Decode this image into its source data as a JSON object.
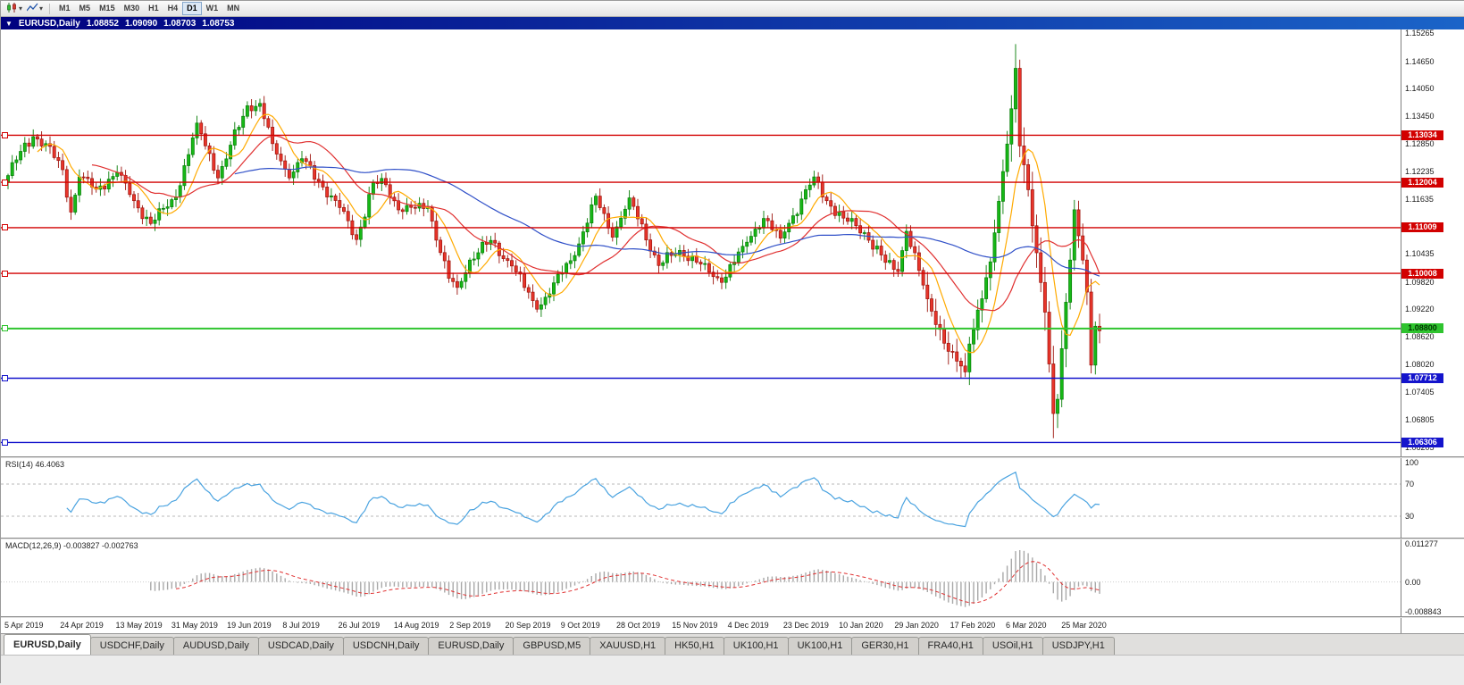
{
  "toolbar": {
    "dropdown_glyph": "▾",
    "timeframes": [
      "M1",
      "M5",
      "M15",
      "M30",
      "H1",
      "H4",
      "D1",
      "W1",
      "MN"
    ],
    "active_timeframe": "D1"
  },
  "title_bar": {
    "collapse_arrow": "▼",
    "symbol_title": "EURUSD,Daily",
    "open": "1.08852",
    "high": "1.09090",
    "low": "1.08703",
    "close": "1.08753"
  },
  "price_axis": {
    "labels": [
      "1.15265",
      "1.14650",
      "1.14050",
      "1.13450",
      "1.12850",
      "1.12235",
      "1.11635",
      "1.11035",
      "1.10435",
      "1.09820",
      "1.09220",
      "1.08620",
      "1.08020",
      "1.07405",
      "1.06805",
      "1.06205"
    ]
  },
  "hlines": [
    {
      "price": 1.13034,
      "label": "1.13034",
      "color": "#d20000",
      "text": "#ffffff"
    },
    {
      "price": 1.12004,
      "label": "1.12004",
      "color": "#d20000",
      "text": "#ffffff"
    },
    {
      "price": 1.11009,
      "label": "1.11009",
      "color": "#d20000",
      "text": "#ffffff"
    },
    {
      "price": 1.10008,
      "label": "1.10008",
      "color": "#d20000",
      "text": "#ffffff"
    },
    {
      "price": 1.088,
      "label": "1.08800",
      "color": "#2fc42f",
      "text": "#003300"
    },
    {
      "price": 1.07712,
      "label": "1.07712",
      "color": "#1414cc",
      "text": "#ffffff"
    },
    {
      "price": 1.06306,
      "label": "1.06306",
      "color": "#1414cc",
      "text": "#ffffff"
    }
  ],
  "date_axis": {
    "labels": [
      "5 Apr 2019",
      "24 Apr 2019",
      "13 May 2019",
      "31 May 2019",
      "19 Jun 2019",
      "8 Jul 2019",
      "26 Jul 2019",
      "14 Aug 2019",
      "2 Sep 2019",
      "20 Sep 2019",
      "9 Oct 2019",
      "28 Oct 2019",
      "15 Nov 2019",
      "4 Dec 2019",
      "23 Dec 2019",
      "10 Jan 2020",
      "29 Jan 2020",
      "17 Feb 2020",
      "6 Mar 2020",
      "25 Mar 2020"
    ]
  },
  "rsi_panel": {
    "label": "RSI(14) 46.4063",
    "value": 46.4063,
    "levels": [
      100,
      70,
      30
    ],
    "axis_labels": [
      "100",
      "70",
      "30"
    ]
  },
  "macd_panel": {
    "label": "MACD(12,26,9) -0.003827 -0.002763",
    "main_value": -0.003827,
    "signal_value": -0.002763,
    "axis_values": [
      0.011277,
      0,
      -0.008843
    ],
    "axis_labels": [
      "0.011277",
      "0.00",
      "-0.008843"
    ]
  },
  "tabs": [
    "EURUSD,Daily",
    "USDCHF,Daily",
    "AUDUSD,Daily",
    "USDCAD,Daily",
    "USDCNH,Daily",
    "EURUSD,Daily",
    "GBPUSD,M5",
    "XAUUSD,H1",
    "HK50,H1",
    "UK100,H1",
    "UK100,H1",
    "GER30,H1",
    "FRA40,H1",
    "USOil,H1",
    "USDJPY,H1"
  ],
  "active_tab_index": 0,
  "chart_data": {
    "type": "candlestick",
    "symbol": "EURUSD",
    "timeframe": "Daily",
    "title": "EURUSD,Daily",
    "ylim": [
      1.06,
      1.1535
    ],
    "bars_total": 261,
    "x_tick_bar_interval": 13.25,
    "x_tick_labels": [
      "5 Apr 2019",
      "24 Apr 2019",
      "13 May 2019",
      "31 May 2019",
      "19 Jun 2019",
      "8 Jul 2019",
      "26 Jul 2019",
      "14 Aug 2019",
      "2 Sep 2019",
      "20 Sep 2019",
      "9 Oct 2019",
      "28 Oct 2019",
      "15 Nov 2019",
      "4 Dec 2019",
      "23 Dec 2019",
      "10 Jan 2020",
      "29 Jan 2020",
      "17 Feb 2020",
      "6 Mar 2020",
      "25 Mar 2020"
    ],
    "close_anchors": [
      [
        0,
        1.1215
      ],
      [
        3,
        1.1268
      ],
      [
        6,
        1.13
      ],
      [
        9,
        1.1285
      ],
      [
        13,
        1.1228
      ],
      [
        15,
        1.1135
      ],
      [
        17,
        1.1212
      ],
      [
        21,
        1.1185
      ],
      [
        26,
        1.1222
      ],
      [
        30,
        1.116
      ],
      [
        34,
        1.111
      ],
      [
        40,
        1.1168
      ],
      [
        45,
        1.133
      ],
      [
        50,
        1.121
      ],
      [
        57,
        1.1368
      ],
      [
        60,
        1.1373
      ],
      [
        63,
        1.1285
      ],
      [
        67,
        1.121
      ],
      [
        70,
        1.1252
      ],
      [
        75,
        1.119
      ],
      [
        79,
        1.1145
      ],
      [
        83,
        1.1075
      ],
      [
        87,
        1.12
      ],
      [
        90,
        1.1195
      ],
      [
        93,
        1.114
      ],
      [
        100,
        1.1145
      ],
      [
        105,
        1.099
      ],
      [
        107,
        1.097
      ],
      [
        110,
        1.103
      ],
      [
        115,
        1.1073
      ],
      [
        120,
        1.1017
      ],
      [
        125,
        1.0941
      ],
      [
        127,
        1.0932
      ],
      [
        130,
        1.098
      ],
      [
        135,
        1.104
      ],
      [
        140,
        1.117
      ],
      [
        144,
        1.108
      ],
      [
        148,
        1.1166
      ],
      [
        155,
        1.1018
      ],
      [
        160,
        1.1051
      ],
      [
        165,
        1.1021
      ],
      [
        170,
        1.0981
      ],
      [
        175,
        1.106
      ],
      [
        180,
        1.1121
      ],
      [
        184,
        1.1078
      ],
      [
        192,
        1.1212
      ],
      [
        195,
        1.116
      ],
      [
        199,
        1.1122
      ],
      [
        204,
        1.109
      ],
      [
        209,
        1.1025
      ],
      [
        212,
        1.1005
      ],
      [
        214,
        1.1093
      ],
      [
        219,
        1.0945
      ],
      [
        224,
        1.083
      ],
      [
        228,
        1.0785
      ],
      [
        229,
        1.0846
      ],
      [
        234,
        1.1026
      ],
      [
        238,
        1.1284
      ],
      [
        240,
        1.145
      ],
      [
        241,
        1.128
      ],
      [
        243,
        1.1184
      ],
      [
        244,
        1.1105
      ],
      [
        247,
        1.0916
      ],
      [
        249,
        1.0694
      ],
      [
        250,
        1.0725
      ],
      [
        253,
        1.103
      ],
      [
        254,
        1.114
      ],
      [
        256,
        1.103
      ],
      [
        257,
        1.096
      ],
      [
        258,
        1.08
      ],
      [
        259,
        1.0885
      ],
      [
        260,
        1.08753
      ]
    ],
    "wick_overrides": {
      "240": {
        "high": 1.1503
      },
      "249": {
        "low": 1.064
      },
      "250": {
        "low": 1.0662
      }
    },
    "moving_averages": [
      {
        "period": 8,
        "color": "#ffaa00"
      },
      {
        "period": 21,
        "color": "#e03030"
      },
      {
        "period": 55,
        "color": "#3050c8"
      }
    ],
    "colors": {
      "up_fill": "#17b817",
      "up_stroke": "#067d06",
      "down_fill": "#e8352b",
      "down_stroke": "#9c120b",
      "rsi_line": "#4aa3e0",
      "macd_hist": "#a8a8a8",
      "macd_signal": "#e03030"
    },
    "indicators": {
      "rsi_period": 14,
      "macd_fast": 12,
      "macd_slow": 26,
      "macd_signal": 9
    }
  }
}
